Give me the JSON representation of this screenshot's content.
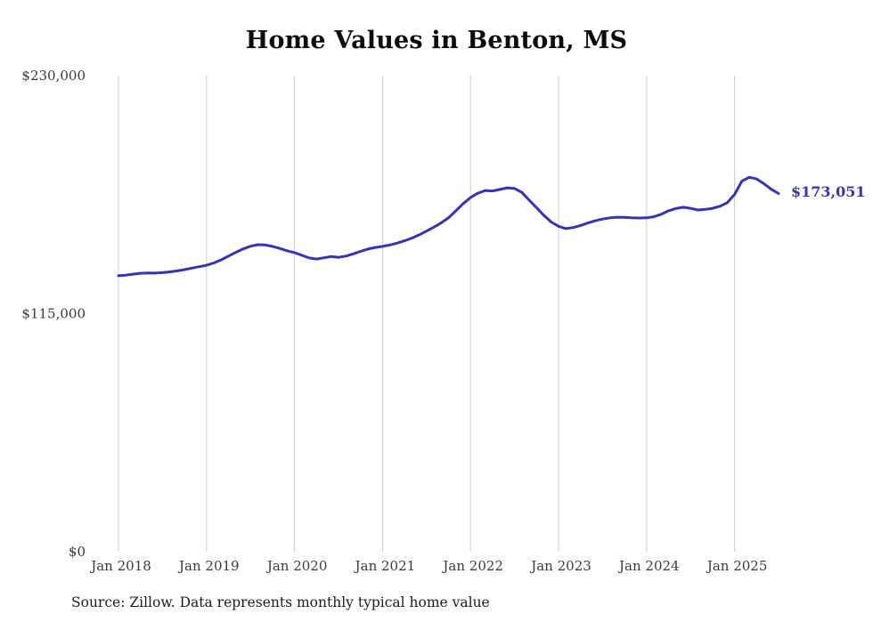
{
  "page": {
    "background_color": "#ffffff"
  },
  "chart_data": {
    "type": "line",
    "title": "Home Values in Benton, MS",
    "series_name": "Typical home value",
    "unit": "USD",
    "frequency": "monthly",
    "start_month": "Jan 2018",
    "end_month": "Jul 2025",
    "ylim": [
      0,
      230000
    ],
    "grid": "vertical-only",
    "legend_position": "none",
    "line_color": "#3434b4",
    "gridline_color": "#cccccc",
    "y_ticks": [
      {
        "label": "$230,000",
        "value": 230000
      },
      {
        "label": "$115,000",
        "value": 115000
      },
      {
        "label": "$0",
        "value": 0
      }
    ],
    "x_tick_labels": [
      "Jan 2018",
      "Jan 2019",
      "Jan 2020",
      "Jan 2021",
      "Jan 2022",
      "Jan 2023",
      "Jan 2024",
      "Jan 2025"
    ],
    "values_by_year": {
      "2018": [
        133300,
        133600,
        134100,
        134500,
        134700,
        134600,
        134800,
        135200,
        135700,
        136300,
        137000,
        137700
      ],
      "2019": [
        138400,
        139500,
        141000,
        142800,
        144600,
        146300,
        147600,
        148300,
        148200,
        147500,
        146500,
        145400
      ],
      "2020": [
        144500,
        143200,
        141900,
        141400,
        142000,
        142600,
        142200,
        142800,
        143900,
        145100,
        146200,
        147000
      ],
      "2021": [
        147500,
        148200,
        149100,
        150200,
        151500,
        153100,
        154900,
        156800,
        158900,
        161300,
        164700,
        168200
      ],
      "2022": [
        171100,
        173200,
        174500,
        174300,
        175000,
        175800,
        175500,
        173600,
        169800,
        166200,
        162500,
        159300
      ],
      "2023": [
        157200,
        156100,
        156600,
        157600,
        158800,
        159900,
        160700,
        161300,
        161600,
        161500,
        161300,
        161200
      ],
      "2024": [
        161300,
        161800,
        163000,
        164700,
        165800,
        166400,
        165900,
        165100,
        165400,
        165900,
        166900,
        168600
      ],
      "2025": [
        172600,
        179000,
        180900,
        180100,
        177800,
        175100,
        173051
      ]
    },
    "end_label": "$173,051",
    "end_value": 173051
  },
  "source_note": "Source: Zillow. Data represents monthly typical home value"
}
